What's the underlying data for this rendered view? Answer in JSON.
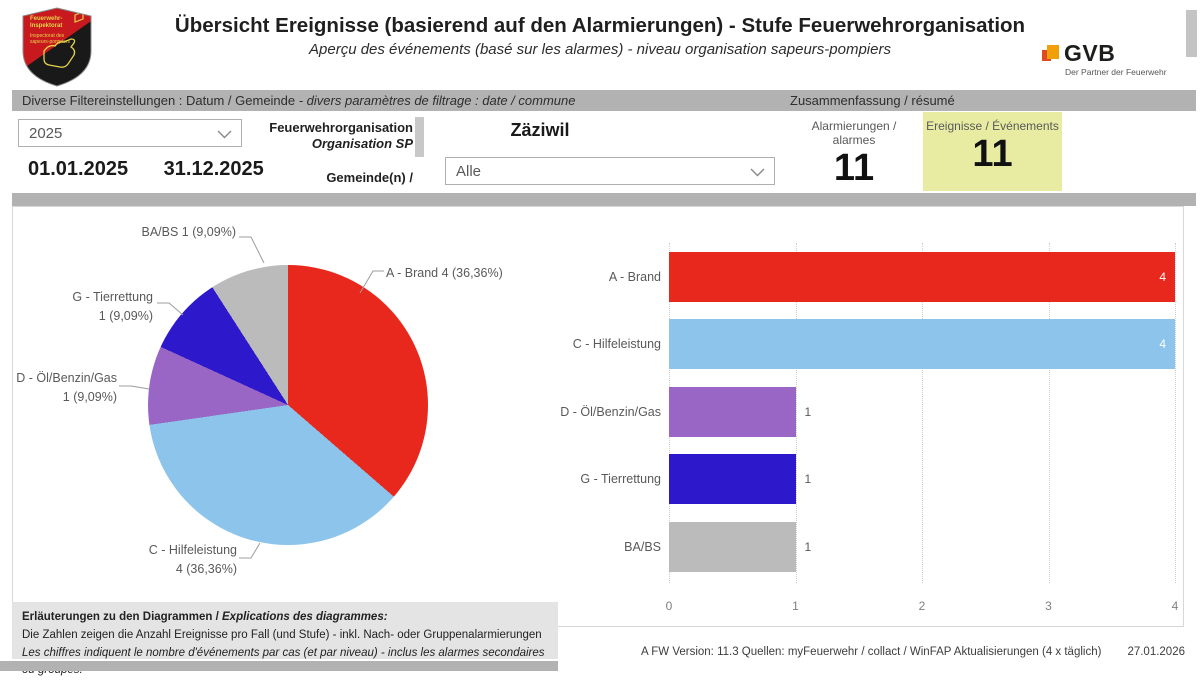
{
  "header": {
    "title": "Übersicht Ereignisse (basierend auf den Alarmierungen) - Stufe Feuerwehrorganisation",
    "subtitle": "Aperçu des événements (basé sur les alarmes) - niveau organisation sapeurs-pompiers",
    "shield_lines": [
      "Feuerwehr-",
      "Inspektorat",
      "Inspectorat des",
      "sapeurs-pompiers"
    ],
    "gvb": {
      "name": "GVB",
      "tagline": "Der Partner der Feuerwehr"
    }
  },
  "filter_bar": {
    "left_de": "Diverse Filtereinstellungen : Datum / Gemeinde",
    "left_fr": " - divers paramètres de filtrage : date / commune",
    "right": "Zusammenfassung / résumé"
  },
  "filters": {
    "year_value": "2025",
    "date_from": "01.01.2025",
    "date_to": "31.12.2025",
    "org_label_de": "Feuerwehrorganisation",
    "org_label_fr": "Organisation SP",
    "gemeinde_label": "Gemeinde(n) /",
    "org_value": "Zäziwil",
    "gemeinde_value": "Alle"
  },
  "kpis": [
    {
      "label": "Alarmierungen / alarmes",
      "value": "11"
    },
    {
      "label": "Ereignisse / Événements",
      "value": "11",
      "highlight": "#e8eca2"
    }
  ],
  "chart_data": [
    {
      "type": "pie",
      "categories": [
        "A - Brand",
        "C - Hilfeleistung",
        "D - Öl/Benzin/Gas",
        "G - Tierrettung",
        "BA/BS"
      ],
      "values": [
        4,
        4,
        1,
        1,
        1
      ],
      "percent_labels": [
        "36,36%",
        "36,36%",
        "9,09%",
        "9,09%",
        "9,09%"
      ],
      "colors": [
        "#e8281c",
        "#8cc4eb",
        "#9966c6",
        "#2e18cb",
        "#bbbbbb"
      ],
      "slice_labels": [
        [
          "A - Brand 4 (36,36%)"
        ],
        [
          "C - Hilfeleistung",
          "4 (36,36%)"
        ],
        [
          "D - Öl/Benzin/Gas",
          "1 (9,09%)"
        ],
        [
          "G - Tierrettung",
          "1 (9,09%)"
        ],
        [
          "BA/BS 1 (9,09%)"
        ]
      ],
      "start_angle_deg": 0,
      "direction": "clockwise"
    },
    {
      "type": "bar",
      "orientation": "horizontal",
      "categories": [
        "A - Brand",
        "C - Hilfeleistung",
        "D - Öl/Benzin/Gas",
        "G - Tierrettung",
        "BA/BS"
      ],
      "values": [
        4,
        4,
        1,
        1,
        1
      ],
      "value_labels": [
        "4",
        "4",
        "1",
        "1",
        "1"
      ],
      "colors": [
        "#e8281c",
        "#8cc4eb",
        "#9966c6",
        "#2e18cb",
        "#bbbbbb"
      ],
      "xlim": [
        0,
        4
      ],
      "xticks": [
        0,
        1,
        2,
        3,
        4
      ],
      "grid": "vertical-dotted"
    }
  ],
  "footnote": {
    "heading_de": "Erläuterungen zu den Diagrammen / ",
    "heading_fr": "Explications des diagrammes:",
    "line_de": "Die Zahlen zeigen die Anzahl Ereignisse pro Fall (und Stufe) - inkl. Nach- oder Gruppenalarmierungen",
    "line_fr": "Les chiffres indiquent le nombre d'événements par cas (et par niveau) -  inclus les alarmes secondaires ou groupes."
  },
  "footer": {
    "info": "A FW  Version: 11.3  Quellen: myFeuerwehr / collact / WinFAP   Aktualisierungen (4 x täglich)",
    "date": "27.01.2026"
  }
}
